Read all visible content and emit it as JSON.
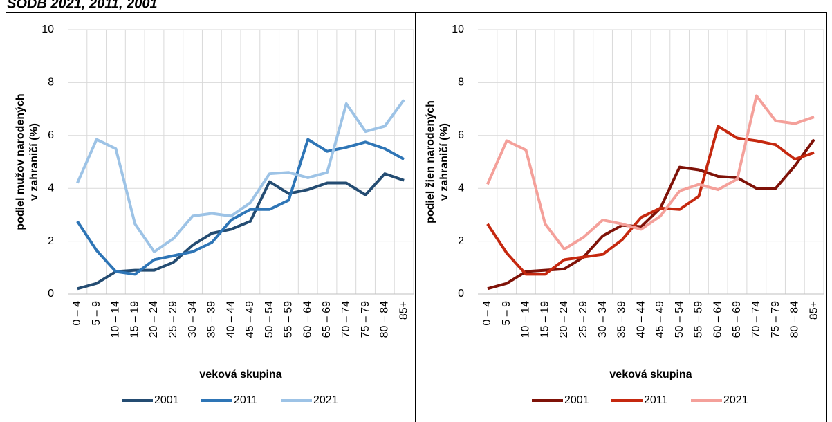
{
  "header": {
    "title": "SODB 2021, 2011, 2001"
  },
  "chart_data": [
    {
      "type": "line",
      "ylabel": [
        "podiel mužov narodených",
        "v zahraničí (%)"
      ],
      "xlabel": "veková skupina",
      "categories": [
        "0 – 4",
        "5 – 9",
        "10 – 14",
        "15 – 19",
        "20 – 24",
        "25 – 29",
        "30 – 34",
        "35 – 39",
        "40 – 44",
        "45 – 49",
        "50 – 54",
        "55 – 59",
        "60 – 64",
        "65 – 69",
        "70 – 74",
        "75 – 79",
        "80 – 84",
        "85+"
      ],
      "series": [
        {
          "name": "2001",
          "color": "#244c72",
          "values": [
            0.2,
            0.4,
            0.85,
            0.9,
            0.9,
            1.2,
            1.85,
            2.3,
            2.45,
            2.75,
            4.25,
            3.8,
            3.95,
            4.2,
            4.2,
            3.75,
            4.55,
            4.3
          ]
        },
        {
          "name": "2011",
          "color": "#2e75b6",
          "values": [
            2.75,
            1.65,
            0.85,
            0.75,
            1.3,
            1.45,
            1.6,
            1.95,
            2.8,
            3.2,
            3.2,
            3.55,
            5.85,
            5.4,
            5.55,
            5.75,
            5.5,
            5.1
          ]
        },
        {
          "name": "2021",
          "color": "#9dc3e6",
          "values": [
            4.2,
            5.85,
            5.5,
            2.65,
            1.6,
            2.1,
            2.95,
            3.05,
            2.95,
            3.45,
            4.55,
            4.6,
            4.4,
            4.6,
            7.2,
            6.15,
            6.35,
            7.35
          ]
        }
      ],
      "ylim": [
        0,
        10
      ],
      "yticks": [
        0,
        2,
        4,
        6,
        8,
        10
      ],
      "grid": true,
      "legend": "bottom"
    },
    {
      "type": "line",
      "ylabel": [
        "podiel žien narodených",
        "v zahraničí (%)"
      ],
      "xlabel": "veková skupina",
      "categories": [
        "0 – 4",
        "5 – 9",
        "10 – 14",
        "15 – 19",
        "20 – 24",
        "25 – 29",
        "30 – 34",
        "35 – 39",
        "40 – 44",
        "45 – 49",
        "50 – 54",
        "55 – 59",
        "60 – 64",
        "65 – 69",
        "70 – 74",
        "75 – 79",
        "80 – 84",
        "85+"
      ],
      "series": [
        {
          "name": "2001",
          "color": "#7f1208",
          "values": [
            0.2,
            0.4,
            0.85,
            0.9,
            0.95,
            1.4,
            2.2,
            2.6,
            2.55,
            3.25,
            4.8,
            4.7,
            4.45,
            4.4,
            4.0,
            4.0,
            4.85,
            5.85
          ]
        },
        {
          "name": "2011",
          "color": "#c5280f",
          "values": [
            2.65,
            1.55,
            0.75,
            0.75,
            1.3,
            1.4,
            1.5,
            2.05,
            2.9,
            3.25,
            3.2,
            3.7,
            6.35,
            5.9,
            5.8,
            5.65,
            5.1,
            5.35
          ]
        },
        {
          "name": "2021",
          "color": "#f4a09a",
          "values": [
            4.15,
            5.8,
            5.45,
            2.65,
            1.7,
            2.15,
            2.8,
            2.65,
            2.45,
            2.95,
            3.9,
            4.15,
            3.95,
            4.35,
            7.5,
            6.55,
            6.45,
            6.7
          ]
        }
      ],
      "ylim": [
        0,
        10
      ],
      "yticks": [
        0,
        2,
        4,
        6,
        8,
        10
      ],
      "grid": true,
      "legend": "bottom"
    }
  ]
}
